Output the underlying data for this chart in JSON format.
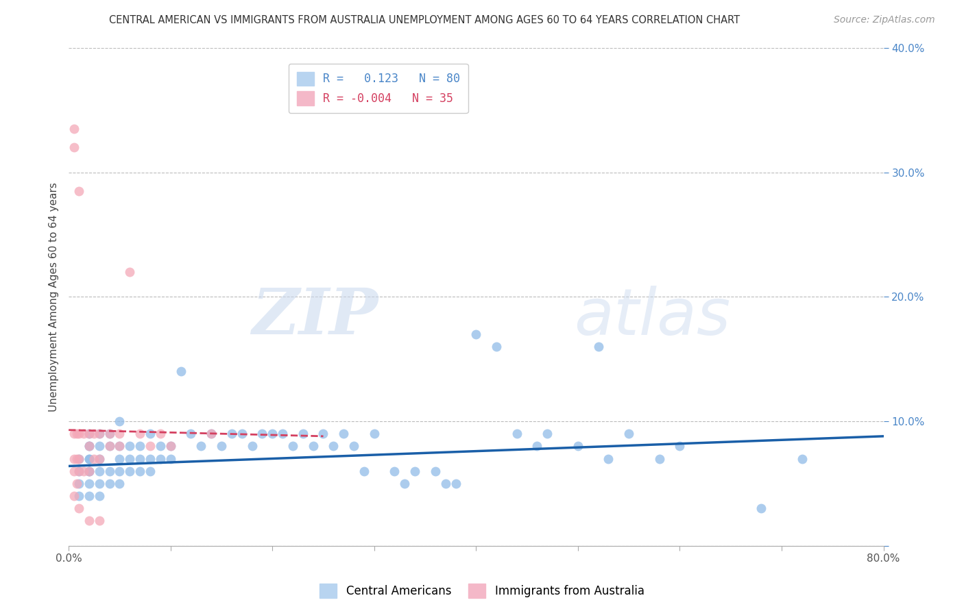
{
  "title": "CENTRAL AMERICAN VS IMMIGRANTS FROM AUSTRALIA UNEMPLOYMENT AMONG AGES 60 TO 64 YEARS CORRELATION CHART",
  "source": "Source: ZipAtlas.com",
  "ylabel": "Unemployment Among Ages 60 to 64 years",
  "xlim": [
    0.0,
    0.8
  ],
  "ylim": [
    0.0,
    0.4
  ],
  "xticks": [
    0.0,
    0.1,
    0.2,
    0.3,
    0.4,
    0.5,
    0.6,
    0.7,
    0.8
  ],
  "yticks": [
    0.0,
    0.1,
    0.2,
    0.3,
    0.4
  ],
  "blue_color": "#90bce8",
  "pink_color": "#f4a8b8",
  "blue_line_color": "#1a5fa8",
  "pink_line_color": "#d44060",
  "watermark_zip": "ZIP",
  "watermark_atlas": "atlas",
  "background_color": "#ffffff",
  "grid_color": "#bbbbbb",
  "blue_scatter_x": [
    0.01,
    0.01,
    0.01,
    0.01,
    0.02,
    0.02,
    0.02,
    0.02,
    0.02,
    0.02,
    0.02,
    0.02,
    0.02,
    0.03,
    0.03,
    0.03,
    0.03,
    0.03,
    0.03,
    0.04,
    0.04,
    0.04,
    0.04,
    0.05,
    0.05,
    0.05,
    0.05,
    0.05,
    0.06,
    0.06,
    0.06,
    0.07,
    0.07,
    0.07,
    0.08,
    0.08,
    0.08,
    0.09,
    0.09,
    0.1,
    0.1,
    0.11,
    0.12,
    0.13,
    0.14,
    0.15,
    0.16,
    0.17,
    0.18,
    0.19,
    0.2,
    0.21,
    0.22,
    0.23,
    0.24,
    0.25,
    0.26,
    0.27,
    0.28,
    0.29,
    0.3,
    0.32,
    0.33,
    0.34,
    0.36,
    0.37,
    0.38,
    0.4,
    0.42,
    0.44,
    0.46,
    0.47,
    0.5,
    0.52,
    0.53,
    0.55,
    0.58,
    0.6,
    0.68,
    0.72
  ],
  "blue_scatter_y": [
    0.04,
    0.05,
    0.06,
    0.07,
    0.04,
    0.05,
    0.06,
    0.06,
    0.07,
    0.07,
    0.08,
    0.08,
    0.09,
    0.04,
    0.05,
    0.06,
    0.07,
    0.08,
    0.09,
    0.05,
    0.06,
    0.08,
    0.09,
    0.05,
    0.06,
    0.07,
    0.08,
    0.1,
    0.06,
    0.07,
    0.08,
    0.06,
    0.07,
    0.08,
    0.06,
    0.07,
    0.09,
    0.07,
    0.08,
    0.07,
    0.08,
    0.14,
    0.09,
    0.08,
    0.09,
    0.08,
    0.09,
    0.09,
    0.08,
    0.09,
    0.09,
    0.09,
    0.08,
    0.09,
    0.08,
    0.09,
    0.08,
    0.09,
    0.08,
    0.06,
    0.09,
    0.06,
    0.05,
    0.06,
    0.06,
    0.05,
    0.05,
    0.17,
    0.16,
    0.09,
    0.08,
    0.09,
    0.08,
    0.16,
    0.07,
    0.09,
    0.07,
    0.08,
    0.03,
    0.07
  ],
  "pink_scatter_x": [
    0.005,
    0.005,
    0.005,
    0.005,
    0.005,
    0.005,
    0.008,
    0.008,
    0.008,
    0.01,
    0.01,
    0.01,
    0.01,
    0.01,
    0.015,
    0.015,
    0.02,
    0.02,
    0.02,
    0.02,
    0.025,
    0.025,
    0.03,
    0.03,
    0.03,
    0.04,
    0.04,
    0.05,
    0.05,
    0.06,
    0.07,
    0.08,
    0.09,
    0.1,
    0.14
  ],
  "pink_scatter_y": [
    0.32,
    0.335,
    0.09,
    0.07,
    0.06,
    0.04,
    0.09,
    0.07,
    0.05,
    0.285,
    0.09,
    0.07,
    0.06,
    0.03,
    0.09,
    0.06,
    0.09,
    0.08,
    0.06,
    0.02,
    0.09,
    0.07,
    0.09,
    0.07,
    0.02,
    0.09,
    0.08,
    0.09,
    0.08,
    0.22,
    0.09,
    0.08,
    0.09,
    0.08,
    0.09
  ],
  "blue_trendline_x0": 0.0,
  "blue_trendline_x1": 0.8,
  "blue_trendline_y0": 0.064,
  "blue_trendline_y1": 0.088,
  "pink_trendline_x0": 0.0,
  "pink_trendline_x1": 0.25,
  "pink_trendline_y0": 0.093,
  "pink_trendline_y1": 0.088
}
